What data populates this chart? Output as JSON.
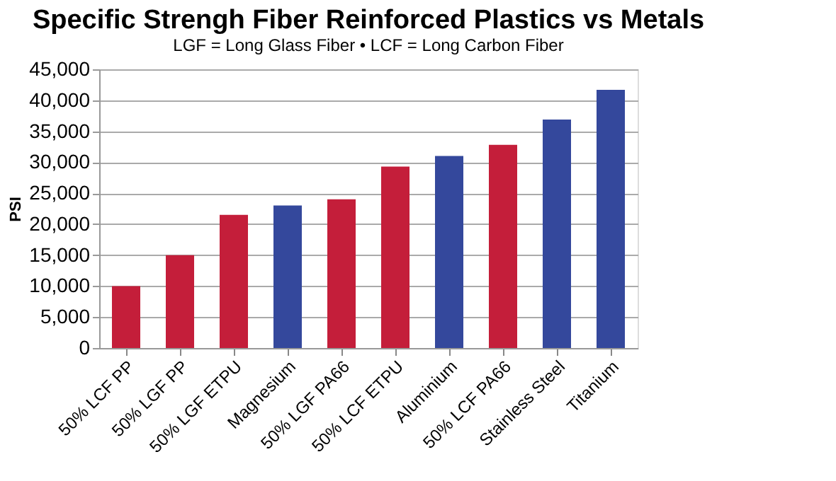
{
  "chart_data": {
    "type": "bar",
    "title": "Specific Strengh Fiber Reinforced Plastics vs Metals",
    "subtitle": "LGF = Long Glass Fiber • LCF = Long Carbon Fiber",
    "ylabel": "PSI",
    "categories": [
      "50% LCF PP",
      "50% LGF PP",
      "50% LGF ETPU",
      "Magnesium",
      "50% LGF PA66",
      "50% LCF ETPU",
      "Aluminium",
      "50% LCF PA66",
      "Stainless Steel",
      "Titanium"
    ],
    "values": [
      10000,
      15000,
      21500,
      23000,
      24000,
      29300,
      31000,
      32800,
      36900,
      41700
    ],
    "colors": [
      "#c41e3a",
      "#c41e3a",
      "#c41e3a",
      "#34489c",
      "#c41e3a",
      "#c41e3a",
      "#34489c",
      "#c41e3a",
      "#34489c",
      "#34489c"
    ],
    "ylim": [
      0,
      45000
    ],
    "yticks": [
      0,
      {
        "value": 5000,
        "label": "5,000"
      },
      {
        "value": 10000,
        "label": "10,000"
      },
      {
        "value": 15000,
        "label": "15,000"
      },
      {
        "value": 20000,
        "label": "20,000"
      },
      {
        "value": 25000,
        "label": "25,000"
      },
      {
        "value": 30000,
        "label": "30,000"
      },
      {
        "value": 35000,
        "label": "35,000"
      },
      {
        "value": 40000,
        "label": "40,000"
      },
      {
        "value": 45000,
        "label": "45,000"
      }
    ],
    "grid": "y"
  }
}
